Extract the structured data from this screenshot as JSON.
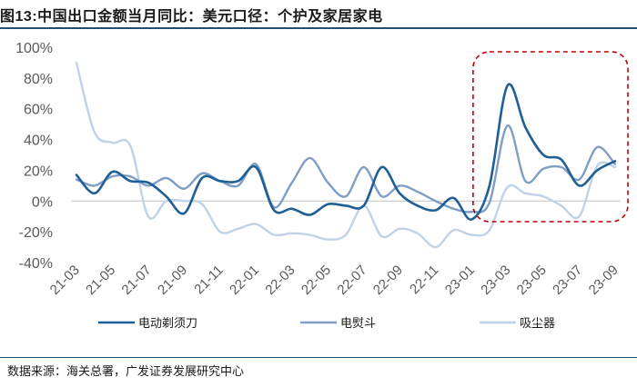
{
  "figure": {
    "title_prefix": "图",
    "title_number": "13:",
    "title_text": "中国出口金额当月同比：美元口径：个护及家居家电",
    "source": "数据来源：海关总署，广发证券发展研究中心"
  },
  "colors": {
    "series_dark": "#1f5f95",
    "series_mid": "#7f9ec6",
    "series_light": "#c0d2e6",
    "highlight_box": "#c00000",
    "axis": "#bfbfbf",
    "rule": "#1f4e79"
  },
  "chart_data": {
    "type": "line",
    "title": "中国出口金额当月同比：美元口径：个护及家居家电",
    "xlabel": "",
    "ylabel": "",
    "ylim": [
      -40,
      100
    ],
    "yticks": [
      "100%",
      "80%",
      "60%",
      "40%",
      "20%",
      "0%",
      "-20%",
      "-40%"
    ],
    "ytick_values": [
      100,
      80,
      60,
      40,
      20,
      0,
      -20,
      -40
    ],
    "xticks": [
      "21-03",
      "21-05",
      "21-07",
      "21-09",
      "21-11",
      "22-01",
      "22-03",
      "22-05",
      "22-07",
      "22-09",
      "22-11",
      "23-01",
      "23-03",
      "23-05",
      "23-07",
      "23-09"
    ],
    "x": [
      "21-03",
      "21-04",
      "21-05",
      "21-06",
      "21-07",
      "21-08",
      "21-09",
      "21-10",
      "21-11",
      "21-12",
      "22-01",
      "22-02",
      "22-03",
      "22-04",
      "22-05",
      "22-06",
      "22-07",
      "22-08",
      "22-09",
      "22-10",
      "22-11",
      "22-12",
      "23-01",
      "23-02",
      "23-03",
      "23-04",
      "23-05",
      "23-06",
      "23-07",
      "23-08",
      "23-09"
    ],
    "series": [
      {
        "name": "电动剃须刀",
        "color": "#1f5f95",
        "values": [
          17,
          5,
          19,
          13,
          12,
          3,
          -8,
          15,
          13,
          13,
          22,
          -6,
          -5,
          -9,
          -2,
          -3,
          -3,
          22,
          5,
          -3,
          -6,
          2,
          -12,
          10,
          75,
          48,
          30,
          27,
          10,
          20,
          26
        ]
      },
      {
        "name": "电熨斗",
        "color": "#7f9ec6",
        "values": [
          14,
          10,
          16,
          16,
          10,
          15,
          8,
          18,
          13,
          10,
          24,
          -4,
          12,
          28,
          12,
          3,
          22,
          3,
          10,
          6,
          0,
          -5,
          -7,
          -1,
          49,
          13,
          21,
          22,
          14,
          35,
          24
        ]
      },
      {
        "name": "吸尘器",
        "color": "#c0d2e6",
        "values": [
          90,
          45,
          38,
          36,
          -10,
          0,
          0,
          -2,
          -20,
          -18,
          -15,
          -22,
          -21,
          -22,
          -25,
          -22,
          -3,
          -23,
          -18,
          -21,
          -30,
          -19,
          -22,
          -19,
          9,
          5,
          3,
          -3,
          -10,
          23,
          22
        ]
      }
    ],
    "highlight_region": {
      "from": "23-02",
      "to": "23-09"
    },
    "legend": [
      "电动剃须刀",
      "电熨斗",
      "吸尘器"
    ],
    "legend_position": "bottom",
    "grid": false
  }
}
